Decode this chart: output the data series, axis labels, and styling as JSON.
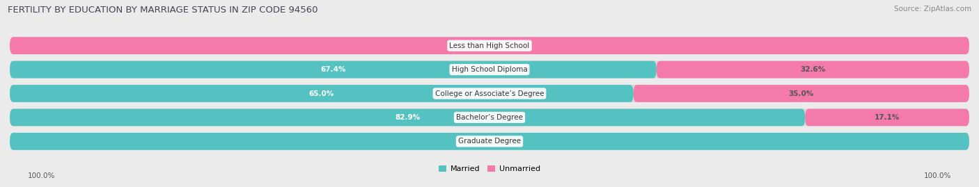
{
  "title": "FERTILITY BY EDUCATION BY MARRIAGE STATUS IN ZIP CODE 94560",
  "source": "Source: ZipAtlas.com",
  "categories": [
    "Less than High School",
    "High School Diploma",
    "College or Associate’s Degree",
    "Bachelor’s Degree",
    "Graduate Degree"
  ],
  "married": [
    0.0,
    67.4,
    65.0,
    82.9,
    100.0
  ],
  "unmarried": [
    100.0,
    32.6,
    35.0,
    17.1,
    0.0
  ],
  "married_color": "#55c2c2",
  "unmarried_color": "#f47aaa",
  "bg_color": "#ebebeb",
  "bar_bg_color": "#d8d8d8",
  "row_bg_color": "#e4e4e4",
  "title_fontsize": 9.5,
  "label_fontsize": 7.5,
  "value_fontsize": 7.5,
  "tick_fontsize": 7.5,
  "source_fontsize": 7.5,
  "bottom_left_label": "100.0%",
  "bottom_right_label": "100.0%"
}
